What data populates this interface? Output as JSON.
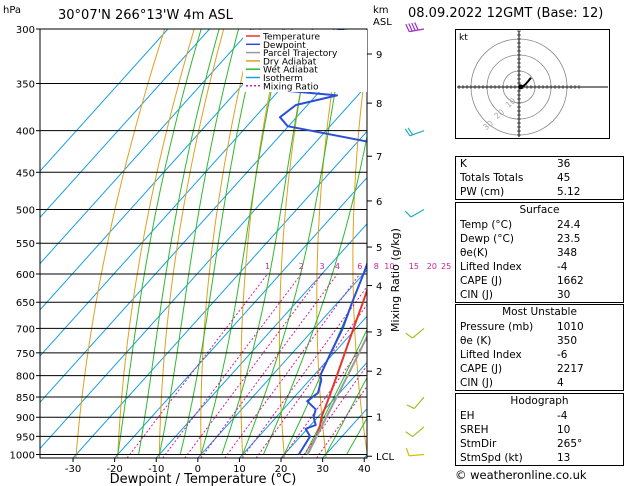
{
  "station": {
    "location": "30°07'N  266°13'W  4m  ASL",
    "datetime": "08.09.2022  12GMT  (Base: 12)",
    "credit": "© weatheronline.co.uk"
  },
  "chart_data": {
    "type": "line",
    "title": "30°07'N  266°13'W  4m  ASL",
    "xlabel": "Dewpoint / Temperature (°C)",
    "ylabel": "hPa",
    "right_axis_label": "Mixing Ratio (g/kg)",
    "km_label": "km\nASL",
    "x_ticks": [
      "-30",
      "-20",
      "-10",
      "0",
      "10",
      "20",
      "30",
      "40"
    ],
    "x_range": [
      -35,
      40
    ],
    "p_ticks": [
      "300",
      "350",
      "400",
      "450",
      "500",
      "550",
      "600",
      "650",
      "700",
      "750",
      "800",
      "850",
      "900",
      "950",
      "1000"
    ],
    "p_range": [
      300,
      1010
    ],
    "km_ticks": [
      {
        "p": 322,
        "label": "9"
      },
      {
        "p": 370,
        "label": "8"
      },
      {
        "p": 430,
        "label": "7"
      },
      {
        "p": 488,
        "label": "6"
      },
      {
        "p": 556,
        "label": "5"
      },
      {
        "p": 620,
        "label": "4"
      },
      {
        "p": 707,
        "label": "3"
      },
      {
        "p": 790,
        "label": "2"
      },
      {
        "p": 898,
        "label": "1"
      },
      {
        "p": 1005,
        "label": "LCL"
      }
    ],
    "mixing_ratio_labels": [
      "1",
      "2",
      "3",
      "4",
      "6",
      "8",
      "10",
      "15",
      "20",
      "25"
    ],
    "mixing_ratio_values": [
      1,
      2,
      3,
      4,
      6,
      8,
      10,
      15,
      20,
      25
    ],
    "legend": {
      "placement": "top-right of plot",
      "entries": [
        {
          "name": "Temperature",
          "color": "#e8352c"
        },
        {
          "name": "Dewpoint",
          "color": "#2a4fd6"
        },
        {
          "name": "Parcel Trajectory",
          "color": "#9a9a9a"
        },
        {
          "name": "Dry Adiabat",
          "color": "#e0a020"
        },
        {
          "name": "Wet Adiabat",
          "color": "#30b830"
        },
        {
          "name": "Isotherm",
          "color": "#18a0e0"
        },
        {
          "name": "Mixing Ratio",
          "color": "#d020a0"
        }
      ]
    },
    "series": [
      {
        "name": "Temperature",
        "color": "#e8352c",
        "points": [
          [
            1000,
            25.6
          ],
          [
            970,
            24.5
          ],
          [
            950,
            23.8
          ],
          [
            925,
            22.6
          ],
          [
            900,
            20.9
          ],
          [
            850,
            18.4
          ],
          [
            800,
            15.6
          ],
          [
            750,
            12.6
          ],
          [
            700,
            9.4
          ],
          [
            650,
            6.0
          ],
          [
            600,
            2.2
          ],
          [
            550,
            -1.8
          ],
          [
            500,
            -6.4
          ],
          [
            450,
            -11.8
          ],
          [
            400,
            -17.8
          ],
          [
            375,
            -21.6
          ],
          [
            350,
            -25.8
          ],
          [
            320,
            -31.6
          ],
          [
            300,
            -35.4
          ]
        ]
      },
      {
        "name": "Dewpoint",
        "color": "#2a4fd6",
        "points": [
          [
            1000,
            23.5
          ],
          [
            950,
            22.3
          ],
          [
            930,
            19.6
          ],
          [
            920,
            21.2
          ],
          [
            900,
            19.0
          ],
          [
            880,
            17.8
          ],
          [
            860,
            14.0
          ],
          [
            840,
            14.8
          ],
          [
            810,
            12.8
          ],
          [
            800,
            11.6
          ],
          [
            750,
            9.2
          ],
          [
            700,
            6.8
          ],
          [
            650,
            3.4
          ],
          [
            600,
            0.0
          ],
          [
            550,
            -4.0
          ],
          [
            500,
            -9.0
          ],
          [
            470,
            -12.6
          ],
          [
            455,
            -16.8
          ],
          [
            440,
            -14.6
          ],
          [
            420,
            -18.5
          ],
          [
            395,
            -50.2
          ],
          [
            385,
            -54.0
          ],
          [
            372,
            -52.8
          ],
          [
            362,
            -45.0
          ],
          [
            357,
            -59.0
          ],
          [
            335,
            -64.5
          ],
          [
            320,
            -61.5
          ],
          [
            310,
            -47.0
          ],
          [
            308,
            -55.8
          ],
          [
            303,
            -60.3
          ],
          [
            300,
            -57.6
          ]
        ]
      },
      {
        "name": "Parcel Trajectory",
        "color": "#9a9a9a",
        "points": [
          [
            1000,
            25.6
          ],
          [
            950,
            23.9
          ],
          [
            900,
            22.1
          ],
          [
            850,
            20.2
          ],
          [
            800,
            18.2
          ],
          [
            750,
            16.0
          ],
          [
            700,
            13.6
          ],
          [
            650,
            10.9
          ],
          [
            600,
            7.9
          ],
          [
            550,
            4.5
          ],
          [
            500,
            0.6
          ],
          [
            450,
            -3.8
          ],
          [
            400,
            -9.3
          ],
          [
            375,
            -12.6
          ],
          [
            350,
            -16.5
          ]
        ]
      }
    ],
    "isotherms": [
      -100,
      -90,
      -80,
      -70,
      -60,
      -50,
      -40,
      -30,
      -20,
      -10,
      0,
      10,
      20,
      30,
      40
    ],
    "dry_adiabats_theta": [
      -30,
      -20,
      -10,
      0,
      10,
      20,
      30,
      40,
      50,
      60,
      70,
      80,
      90,
      100,
      110,
      120,
      130,
      140,
      150,
      160,
      170,
      180,
      190,
      200
    ],
    "wet_adiabats_theta_w": [
      -20,
      -15,
      -10,
      -5,
      0,
      5,
      10,
      15,
      20,
      25,
      30,
      35,
      40
    ],
    "wind_barbs": [
      {
        "p": 300,
        "dir_deg": 260,
        "speed_kt": 45
      },
      {
        "p": 400,
        "dir_deg": 250,
        "speed_kt": 20
      },
      {
        "p": 500,
        "dir_deg": 240,
        "speed_kt": 15
      },
      {
        "p": 700,
        "dir_deg": 230,
        "speed_kt": 10
      },
      {
        "p": 850,
        "dir_deg": 220,
        "speed_kt": 10
      },
      {
        "p": 925,
        "dir_deg": 230,
        "speed_kt": 10
      },
      {
        "p": 1000,
        "dir_deg": 265,
        "speed_kt": 10
      }
    ]
  },
  "hodograph": {
    "unit_label": "kt",
    "ring_labels": [
      "10",
      "20",
      "30"
    ],
    "trace_uv": [
      [
        0.0,
        0.0
      ],
      [
        2.5,
        0.5
      ],
      [
        4.0,
        1.6
      ],
      [
        5.5,
        3.4
      ],
      [
        7.5,
        5.8
      ]
    ],
    "storm_uv": [
      1.0,
      0.1
    ]
  },
  "indices": [
    {
      "label": "K",
      "value": "36"
    },
    {
      "label": "Totals Totals",
      "value": "45"
    },
    {
      "label": "PW (cm)",
      "value": "5.12"
    }
  ],
  "surface": {
    "title": "Surface",
    "rows": [
      {
        "label": "Temp (°C)",
        "value": "24.4"
      },
      {
        "label": "Dewp (°C)",
        "value": "23.5"
      },
      {
        "label": "θe(K)",
        "value": "348"
      },
      {
        "label": "Lifted Index",
        "value": "-4"
      },
      {
        "label": "CAPE (J)",
        "value": "1662"
      },
      {
        "label": "CIN (J)",
        "value": "30"
      }
    ]
  },
  "most_unstable": {
    "title": "Most Unstable",
    "rows": [
      {
        "label": "Pressure (mb)",
        "value": "1010"
      },
      {
        "label": "θe (K)",
        "value": "350"
      },
      {
        "label": "Lifted Index",
        "value": "-6"
      },
      {
        "label": "CAPE (J)",
        "value": "2217"
      },
      {
        "label": "CIN (J)",
        "value": "4"
      }
    ]
  },
  "hodograph_table": {
    "title": "Hodograph",
    "rows": [
      {
        "label": "EH",
        "value": "-4"
      },
      {
        "label": "SREH",
        "value": "10"
      },
      {
        "label": "StmDir",
        "value": "265°"
      },
      {
        "label": "StmSpd (kt)",
        "value": "13"
      }
    ]
  }
}
